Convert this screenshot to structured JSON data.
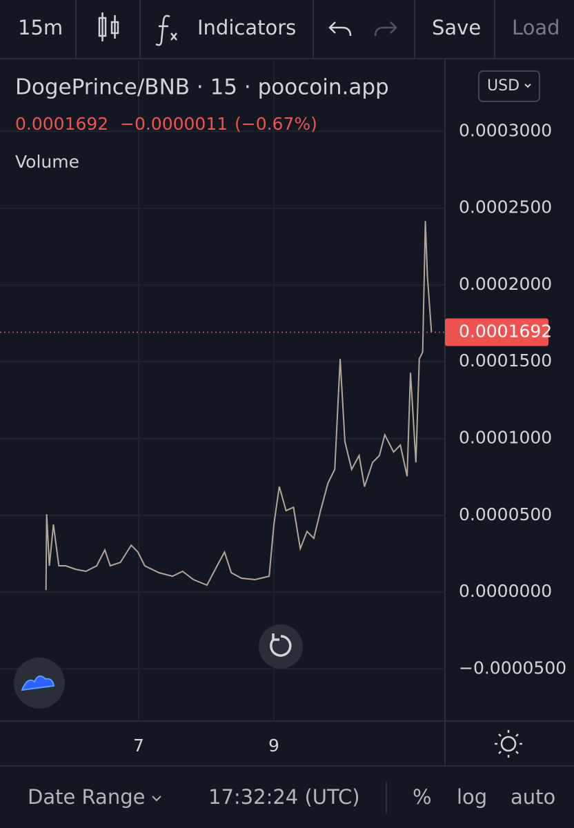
{
  "toolbar": {
    "interval": "15m",
    "indicators": "Indicators",
    "save": "Save",
    "load": "Load"
  },
  "header": {
    "symbol": "DogePrince/BNB · 15 · poocoin.app",
    "currency": "USD",
    "price": "0.0001692",
    "change": "−0.0000011",
    "change_pct": "(−0.67%)",
    "volume_label": "Volume"
  },
  "chart_data": {
    "type": "line",
    "color": "#b3a69a",
    "grid": true,
    "x": [
      5.63,
      5.64,
      5.68,
      5.74,
      5.82,
      5.92,
      6.07,
      6.22,
      6.38,
      6.5,
      6.58,
      6.73,
      6.89,
      6.99,
      7.09,
      7.3,
      7.5,
      7.65,
      7.81,
      8.01,
      8.16,
      8.27,
      8.37,
      8.52,
      8.72,
      8.93,
      9.0,
      9.08,
      9.18,
      9.29,
      9.39,
      9.49,
      9.59,
      9.69,
      9.8,
      9.9,
      9.98,
      10.05,
      10.15,
      10.26,
      10.34,
      10.46,
      10.56,
      10.64,
      10.77,
      10.87,
      10.97,
      11.02,
      11.1,
      11.15,
      11.2,
      11.24,
      11.27,
      11.33
    ],
    "values": [
      1.3e-06,
      5.07e-05,
      1.71e-05,
      4.4e-05,
      1.71e-05,
      1.71e-05,
      1.48e-05,
      1.35e-05,
      1.71e-05,
      2.74e-05,
      1.71e-05,
      1.93e-05,
      3.05e-05,
      2.6e-05,
      1.71e-05,
      1.26e-05,
      1.03e-05,
      1.35e-05,
      8.1e-06,
      4.5e-06,
      1.71e-05,
      2.6e-05,
      1.26e-05,
      9e-06,
      8.1e-06,
      1.03e-05,
      4.4e-05,
      6.87e-05,
      5.3e-05,
      5.52e-05,
      2.83e-05,
      3.95e-05,
      3.5e-05,
      5.3e-05,
      7.1e-05,
      7.99e-05,
      0.0001518,
      9.79e-05,
      7.99e-05,
      8.89e-05,
      6.87e-05,
      8.44e-05,
      8.89e-05,
      0.0001024,
      9.12e-05,
      9.57e-05,
      7.54e-05,
      0.0001428,
      8.44e-05,
      0.0001518,
      0.0001563,
      0.0002416,
      0.0002057,
      0.0001692
    ],
    "xlim": [
      4.95,
      11.53
    ],
    "xticks": [
      7,
      9
    ],
    "ylim": [
      -8.4e-05,
      0.000346
    ],
    "yticks": [
      {
        "value": -5e-05,
        "label": "−0.0000500"
      },
      {
        "value": 0,
        "label": "0.0000000"
      },
      {
        "value": 5e-05,
        "label": "0.0000500"
      },
      {
        "value": 0.0001,
        "label": "0.0001000"
      },
      {
        "value": 0.00015,
        "label": "0.0001500"
      },
      {
        "value": 0.0002,
        "label": "0.0002000"
      },
      {
        "value": 0.00025,
        "label": "0.0002500"
      },
      {
        "value": 0.0003,
        "label": "0.0003000"
      }
    ],
    "last_price": 0.0001692,
    "last_price_color": "#ef5350"
  },
  "footer": {
    "date_range": "Date Range",
    "time": "17:32:24 (UTC)",
    "percent": "%",
    "log": "log",
    "auto": "auto"
  }
}
